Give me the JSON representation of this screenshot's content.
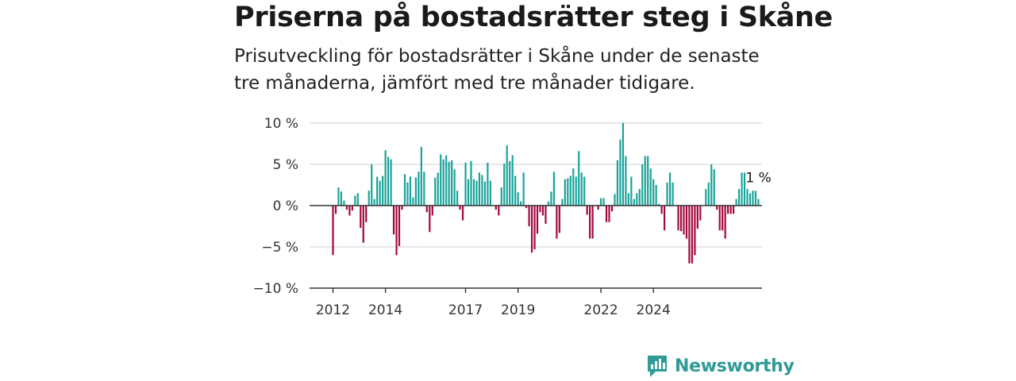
{
  "header": {
    "title": "Priserna på bostadsrätter steg i Skåne",
    "subtitle": "Prisutveckling för bostadsrätter i Skåne under de senaste tre månaderna, jämfört med tre månader tidigare."
  },
  "brand": {
    "name": "Newsworthy"
  },
  "colors": {
    "positive": "#1aa39a",
    "negative": "#a3073f",
    "brand": "#2f9b96"
  },
  "chart_data": {
    "type": "bar",
    "title": "",
    "xlabel": "",
    "ylabel": "",
    "ylim": [
      -10,
      10
    ],
    "y_ticks": [
      10,
      5,
      0,
      -5,
      -10
    ],
    "y_tick_labels": [
      "10 %",
      "5 %",
      "0 %",
      "−5 %",
      "−10 %"
    ],
    "x_tick_labels": [
      "2012",
      "2014",
      "2017",
      "2019",
      "2022",
      "2024"
    ],
    "x_tick_bar_index": [
      0,
      19,
      48,
      67,
      97,
      116
    ],
    "last_value_label": "1 %",
    "grid": true,
    "values": [
      -6,
      -1,
      2.2,
      1.7,
      0.6,
      -0.5,
      -1.2,
      -0.6,
      1.2,
      1.5,
      -2.7,
      -4.5,
      -2,
      1.8,
      5,
      0.8,
      3.5,
      3,
      3.6,
      6.7,
      5.9,
      5.6,
      -3.5,
      -6,
      -4.9,
      -0.5,
      3.8,
      2.8,
      3.5,
      1,
      3.4,
      4.1,
      7.1,
      4.1,
      -0.8,
      -3.2,
      -1.2,
      3.4,
      4,
      6.2,
      5.6,
      6.1,
      5.3,
      5.5,
      4.4,
      1.8,
      -0.5,
      -1.8,
      5.2,
      3.2,
      5.4,
      3.2,
      3,
      4,
      3.7,
      2.9,
      5.2,
      3,
      0,
      -0.5,
      -1.2,
      2.2,
      5.1,
      7.3,
      5.4,
      6.1,
      3.6,
      1.6,
      0.5,
      4,
      -0.3,
      -2.5,
      -5.7,
      -5.3,
      -3.4,
      -0.8,
      -1.2,
      -2.2,
      0.5,
      1.7,
      4.1,
      -4,
      -3.3,
      0.8,
      3.2,
      3.3,
      3.6,
      4.5,
      3.5,
      6.6,
      4,
      3.5,
      -1.1,
      -4,
      -4,
      0,
      -0.5,
      0.9,
      0.9,
      -2,
      -2,
      -0.7,
      1.4,
      5.5,
      8,
      10,
      6,
      1.5,
      3.5,
      0.8,
      1.5,
      2,
      5,
      6,
      6,
      4.5,
      3.2,
      2.5,
      0.2,
      -1,
      -3,
      2.8,
      4,
      2.8,
      0,
      -3,
      -3.1,
      -3.5,
      -4,
      -7,
      -7,
      -6,
      -2.8,
      -1.8,
      0,
      2,
      2.8,
      5,
      4.4,
      -0.5,
      -3,
      -3,
      -4,
      -1,
      -1,
      -1,
      0.8,
      2,
      4,
      4,
      2,
      1.5,
      1.8,
      1.8,
      0.8
    ]
  }
}
